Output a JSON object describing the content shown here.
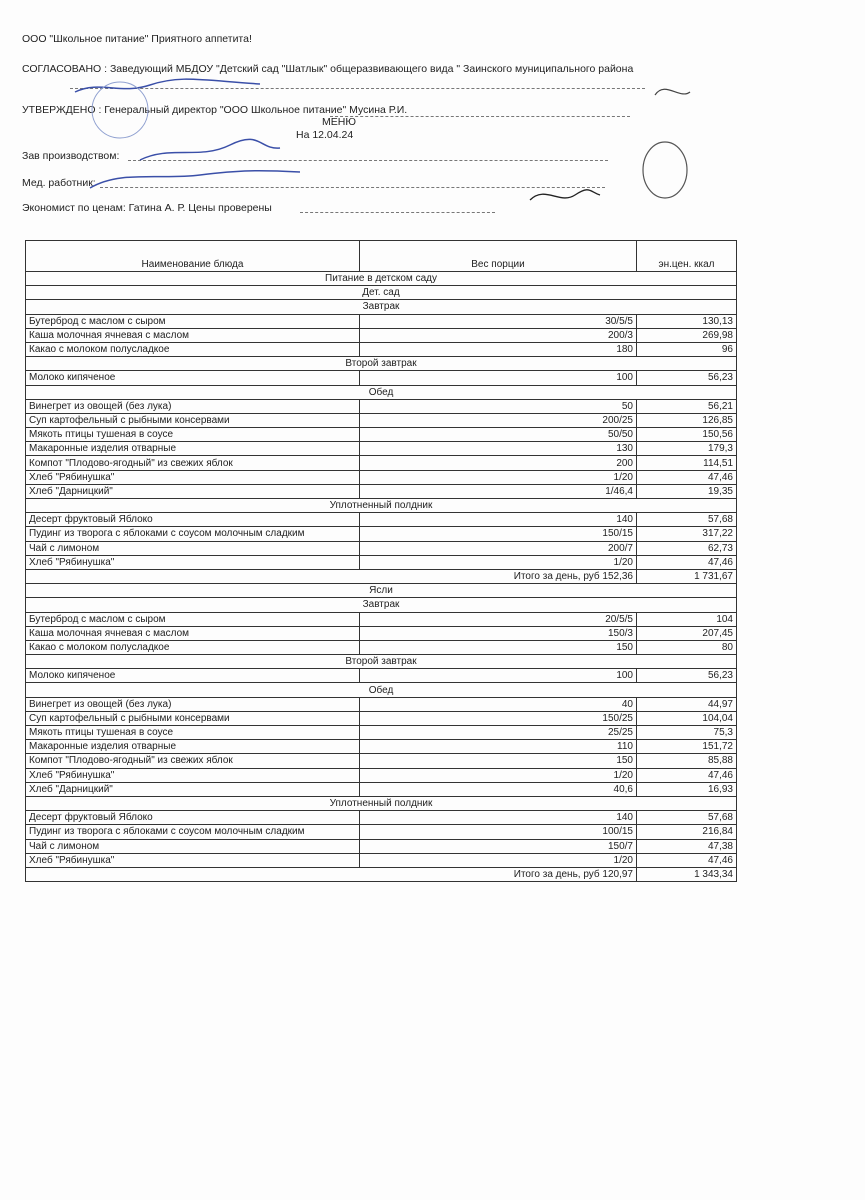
{
  "header": {
    "company": "ООО \"Школьное питание\" Приятного аппетита!",
    "agreed": "СОГЛАСОВАНО : Заведующий МБДОУ \"Детский сад \"Шатлык\" общеразвивающего вида \" Заинского муниципального района",
    "approved": "УТВЕРЖДЕНО : Генеральный директор \"ООО Школьное питание\" Мусина Р.И.",
    "title": "МЕНЮ",
    "date": "На 12.04.24",
    "production": "Зав производством:",
    "medic": "Мед. работник:",
    "economist": "Экономист по ценам: Гатина А. Р.   Цены проверены"
  },
  "table": {
    "columns": [
      "Наименование блюда",
      "Вес порции",
      "эн.цен. ккал"
    ],
    "rows": [
      [
        "Питание в детском саду"
      ],
      [
        "Дет. сад"
      ],
      [
        "Завтрак"
      ],
      [
        "Бутерброд с маслом с сыром",
        "30/5/5",
        "130,13"
      ],
      [
        "Каша молочная ячневая с маслом",
        "200/3",
        "269,98"
      ],
      [
        "Какао с молоком полусладкое",
        "180",
        "96"
      ],
      [
        "Второй завтрак"
      ],
      [
        "Молоко кипяченое",
        "100",
        "56,23"
      ],
      [
        "Обед"
      ],
      [
        "Винегрет из овощей (без лука)",
        "50",
        "56,21"
      ],
      [
        "Суп картофельный с рыбными консервами",
        "200/25",
        "126,85"
      ],
      [
        "Мякоть птицы тушеная в соусе",
        "50/50",
        "150,56"
      ],
      [
        "Макаронные изделия отварные",
        "130",
        "179,3"
      ],
      [
        "Компот \"Плодово-ягодный\" из свежих яблок",
        "200",
        "114,51"
      ],
      [
        "Хлеб \"Рябинушка\"",
        "1/20",
        "47,46"
      ],
      [
        "Хлеб \"Дарницкий\"",
        "1/46,4",
        "19,35"
      ],
      [
        "Уплотненный полдник"
      ],
      [
        "Десерт фруктовый Яблоко",
        "140",
        "57,68"
      ],
      [
        "Пудинг из творога с яблоками с соусом молочным сладким",
        "150/15",
        "317,22"
      ],
      [
        "Чай с лимоном",
        "200/7",
        "62,73"
      ],
      [
        "Хлеб \"Рябинушка\"",
        "1/20",
        "47,46"
      ],
      [
        "Итого за день, руб 152,36",
        "1 731,67"
      ],
      [
        "Ясли"
      ],
      [
        "Завтрак"
      ],
      [
        "Бутерброд с маслом с сыром",
        "20/5/5",
        "104"
      ],
      [
        "Каша молочная ячневая с маслом",
        "150/3",
        "207,45"
      ],
      [
        "Какао с молоком полусладкое",
        "150",
        "80"
      ],
      [
        "Второй завтрак"
      ],
      [
        "Молоко кипяченое",
        "100",
        "56,23"
      ],
      [
        "Обед"
      ],
      [
        "Винегрет из овощей (без лука)",
        "40",
        "44,97"
      ],
      [
        "Суп картофельный с рыбными консервами",
        "150/25",
        "104,04"
      ],
      [
        "Мякоть птицы тушеная в соусе",
        "25/25",
        "75,3"
      ],
      [
        "Макаронные изделия отварные",
        "110",
        "151,72"
      ],
      [
        "Компот \"Плодово-ягодный\" из свежих яблок",
        "150",
        "85,88"
      ],
      [
        "Хлеб \"Рябинушка\"",
        "1/20",
        "47,46"
      ],
      [
        "Хлеб \"Дарницкий\"",
        "40,6",
        "16,93"
      ],
      [
        "Уплотненный полдник"
      ],
      [
        "Десерт фруктовый Яблоко",
        "140",
        "57,68"
      ],
      [
        "Пудинг из творога с яблоками с соусом молочным сладким",
        "100/15",
        "216,84"
      ],
      [
        "Чай с лимоном",
        "150/7",
        "47,38"
      ],
      [
        "Хлеб \"Рябинушка\"",
        "1/20",
        "47,46"
      ],
      [
        "Итого за день, руб 120,97",
        "1 343,34"
      ]
    ]
  }
}
